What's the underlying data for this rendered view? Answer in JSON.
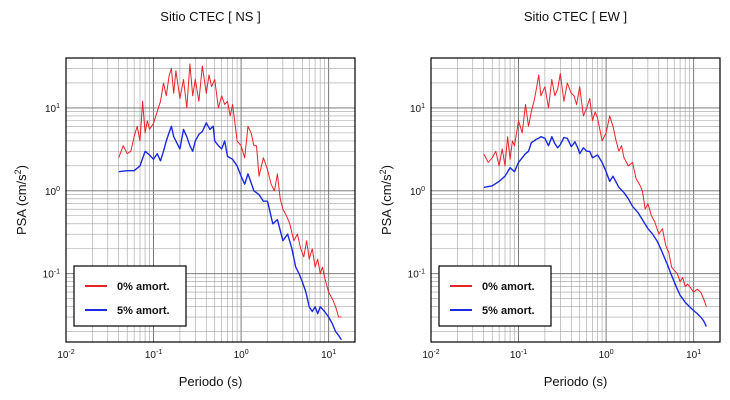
{
  "chart_data": [
    {
      "type": "line",
      "title": "Sitio CTEC [ NS ]",
      "xlabel": "Periodo (s)",
      "ylabel_main": "PSA (cm/s",
      "ylabel_exp": "2",
      "ylabel_close": ")",
      "x_scale": "log",
      "y_scale": "log",
      "xlim": [
        0.01,
        20
      ],
      "ylim": [
        0.015,
        40
      ],
      "grid": true,
      "legend_position": "bottom-left",
      "x_ticks": [
        {
          "value": 0.01,
          "base": "10",
          "exp": "-2"
        },
        {
          "value": 0.1,
          "base": "10",
          "exp": "-1"
        },
        {
          "value": 1,
          "base": "10",
          "exp": "0"
        },
        {
          "value": 10,
          "base": "10",
          "exp": "1"
        }
      ],
      "y_ticks": [
        {
          "value": 0.1,
          "base": "10",
          "exp": "-1"
        },
        {
          "value": 1,
          "base": "10",
          "exp": "0"
        },
        {
          "value": 10,
          "base": "10",
          "exp": "1"
        }
      ],
      "series": [
        {
          "name": "0% amort.",
          "color": "#e8242b",
          "x": [
            0.04,
            0.045,
            0.05,
            0.055,
            0.06,
            0.065,
            0.07,
            0.075,
            0.08,
            0.085,
            0.09,
            0.1,
            0.11,
            0.12,
            0.13,
            0.14,
            0.15,
            0.16,
            0.17,
            0.18,
            0.2,
            0.22,
            0.24,
            0.26,
            0.28,
            0.3,
            0.33,
            0.36,
            0.4,
            0.43,
            0.46,
            0.5,
            0.55,
            0.6,
            0.65,
            0.7,
            0.75,
            0.8,
            0.9,
            1.0,
            1.1,
            1.2,
            1.3,
            1.4,
            1.5,
            1.6,
            1.8,
            2.0,
            2.2,
            2.4,
            2.6,
            2.8,
            3.0,
            3.3,
            3.6,
            4.0,
            4.4,
            4.8,
            5.2,
            5.6,
            6.0,
            6.5,
            7.0,
            7.5,
            8.0,
            8.5,
            9.0,
            10,
            11,
            12,
            13,
            14
          ],
          "y": [
            2.5,
            3.5,
            2.8,
            3.0,
            4.5,
            6.0,
            4.0,
            12.0,
            5.0,
            7.0,
            5.5,
            6.5,
            9.0,
            12.0,
            20.0,
            14.0,
            24.0,
            30.0,
            15.0,
            28.0,
            13.0,
            22.0,
            10.0,
            34.0,
            14.0,
            22.0,
            12.0,
            32.0,
            15.0,
            25.0,
            18.0,
            22.0,
            10.0,
            14.0,
            11.0,
            12.0,
            8.0,
            11.0,
            4.0,
            3.5,
            2.5,
            6.0,
            5.0,
            3.5,
            3.5,
            1.5,
            2.5,
            1.8,
            1.2,
            1.0,
            1.6,
            0.8,
            0.6,
            0.5,
            0.4,
            0.25,
            0.3,
            0.2,
            0.16,
            0.25,
            0.15,
            0.2,
            0.12,
            0.15,
            0.1,
            0.12,
            0.09,
            0.06,
            0.05,
            0.04,
            0.03,
            0.03
          ]
        },
        {
          "name": "5% amort.",
          "color": "#1a2ae0",
          "x": [
            0.04,
            0.05,
            0.06,
            0.07,
            0.08,
            0.09,
            0.1,
            0.11,
            0.12,
            0.13,
            0.14,
            0.15,
            0.16,
            0.17,
            0.18,
            0.2,
            0.22,
            0.24,
            0.26,
            0.28,
            0.3,
            0.33,
            0.36,
            0.4,
            0.44,
            0.48,
            0.5,
            0.55,
            0.6,
            0.65,
            0.7,
            0.8,
            0.9,
            1.0,
            1.1,
            1.2,
            1.4,
            1.6,
            1.8,
            2.0,
            2.3,
            2.6,
            3.0,
            3.4,
            3.8,
            4.2,
            4.6,
            5.0,
            5.5,
            6.0,
            6.5,
            7.0,
            7.5,
            8.0,
            9.0,
            10,
            11,
            12,
            13,
            14
          ],
          "y": [
            1.7,
            1.75,
            1.75,
            2.0,
            3.0,
            2.7,
            2.4,
            2.8,
            2.3,
            3.0,
            4.0,
            5.0,
            6.0,
            4.5,
            4.0,
            3.2,
            5.5,
            4.5,
            3.5,
            3.0,
            4.0,
            4.8,
            5.2,
            6.6,
            5.5,
            6.0,
            4.0,
            3.5,
            3.2,
            4.0,
            2.6,
            2.4,
            2.0,
            1.5,
            1.2,
            1.6,
            1.0,
            0.9,
            0.75,
            0.75,
            0.4,
            0.45,
            0.25,
            0.3,
            0.2,
            0.12,
            0.1,
            0.08,
            0.06,
            0.04,
            0.035,
            0.04,
            0.033,
            0.04,
            0.035,
            0.03,
            0.025,
            0.02,
            0.018,
            0.016
          ]
        }
      ]
    },
    {
      "type": "line",
      "title": "Sitio CTEC [ EW ]",
      "xlabel": "Periodo (s)",
      "ylabel_main": "PSA (cm/s",
      "ylabel_exp": "2",
      "ylabel_close": ")",
      "x_scale": "log",
      "y_scale": "log",
      "xlim": [
        0.01,
        20
      ],
      "ylim": [
        0.015,
        40
      ],
      "grid": true,
      "legend_position": "bottom-left",
      "x_ticks": [
        {
          "value": 0.01,
          "base": "10",
          "exp": "-2"
        },
        {
          "value": 0.1,
          "base": "10",
          "exp": "-1"
        },
        {
          "value": 1,
          "base": "10",
          "exp": "0"
        },
        {
          "value": 10,
          "base": "10",
          "exp": "1"
        }
      ],
      "y_ticks": [
        {
          "value": 0.1,
          "base": "10",
          "exp": "-1"
        },
        {
          "value": 1,
          "base": "10",
          "exp": "0"
        },
        {
          "value": 10,
          "base": "10",
          "exp": "1"
        }
      ],
      "series": [
        {
          "name": "0% amort.",
          "color": "#e8242b",
          "x": [
            0.04,
            0.045,
            0.05,
            0.055,
            0.06,
            0.065,
            0.07,
            0.075,
            0.08,
            0.085,
            0.09,
            0.1,
            0.11,
            0.12,
            0.13,
            0.14,
            0.15,
            0.16,
            0.17,
            0.18,
            0.2,
            0.22,
            0.24,
            0.26,
            0.28,
            0.3,
            0.33,
            0.36,
            0.4,
            0.43,
            0.46,
            0.5,
            0.55,
            0.6,
            0.65,
            0.7,
            0.75,
            0.8,
            0.9,
            1.0,
            1.1,
            1.2,
            1.3,
            1.4,
            1.5,
            1.6,
            1.8,
            2.0,
            2.2,
            2.4,
            2.6,
            2.8,
            3.0,
            3.3,
            3.6,
            4.0,
            4.4,
            4.8,
            5.2,
            5.6,
            6.0,
            6.5,
            7.0,
            7.5,
            8.0,
            8.5,
            9.0,
            10,
            11,
            12,
            13,
            14
          ],
          "y": [
            2.8,
            2.2,
            2.5,
            3.0,
            2.0,
            3.2,
            2.0,
            4.5,
            2.4,
            4.0,
            3.5,
            7.0,
            5.0,
            11.0,
            6.0,
            9.0,
            12.0,
            17.0,
            25.0,
            14.0,
            18.0,
            10.0,
            22.0,
            14.0,
            17.0,
            26.0,
            12.0,
            20.0,
            15.0,
            14.0,
            11.0,
            18.0,
            8.0,
            10.0,
            13.0,
            7.0,
            9.0,
            7.5,
            4.0,
            5.0,
            8.0,
            6.0,
            4.0,
            3.0,
            3.5,
            2.5,
            2.0,
            2.2,
            1.4,
            1.2,
            1.0,
            0.6,
            0.7,
            0.5,
            0.42,
            0.3,
            0.35,
            0.22,
            0.18,
            0.12,
            0.11,
            0.1,
            0.08,
            0.09,
            0.07,
            0.075,
            0.07,
            0.06,
            0.065,
            0.06,
            0.05,
            0.04
          ]
        },
        {
          "name": "5% amort.",
          "color": "#1a2ae0",
          "x": [
            0.04,
            0.05,
            0.06,
            0.07,
            0.08,
            0.09,
            0.1,
            0.11,
            0.12,
            0.13,
            0.14,
            0.15,
            0.16,
            0.17,
            0.18,
            0.2,
            0.22,
            0.24,
            0.26,
            0.28,
            0.3,
            0.33,
            0.36,
            0.4,
            0.44,
            0.48,
            0.5,
            0.55,
            0.6,
            0.65,
            0.7,
            0.8,
            0.9,
            1.0,
            1.1,
            1.2,
            1.4,
            1.6,
            1.8,
            2.0,
            2.3,
            2.6,
            3.0,
            3.4,
            3.8,
            4.2,
            4.6,
            5.0,
            5.5,
            6.0,
            6.5,
            7.0,
            7.5,
            8.0,
            9.0,
            10,
            11,
            12,
            13,
            14
          ],
          "y": [
            1.1,
            1.15,
            1.3,
            1.5,
            1.9,
            1.7,
            2.2,
            2.5,
            2.8,
            3.0,
            3.8,
            4.0,
            4.2,
            4.3,
            4.5,
            4.3,
            3.5,
            4.5,
            3.7,
            3.3,
            3.6,
            4.4,
            4.3,
            3.4,
            3.9,
            3.2,
            2.8,
            3.3,
            3.0,
            3.0,
            2.5,
            2.7,
            2.2,
            1.7,
            1.3,
            1.5,
            1.1,
            0.95,
            0.8,
            0.65,
            0.55,
            0.45,
            0.35,
            0.3,
            0.25,
            0.2,
            0.16,
            0.13,
            0.1,
            0.08,
            0.065,
            0.055,
            0.05,
            0.045,
            0.04,
            0.036,
            0.033,
            0.03,
            0.027,
            0.023
          ]
        }
      ]
    }
  ]
}
